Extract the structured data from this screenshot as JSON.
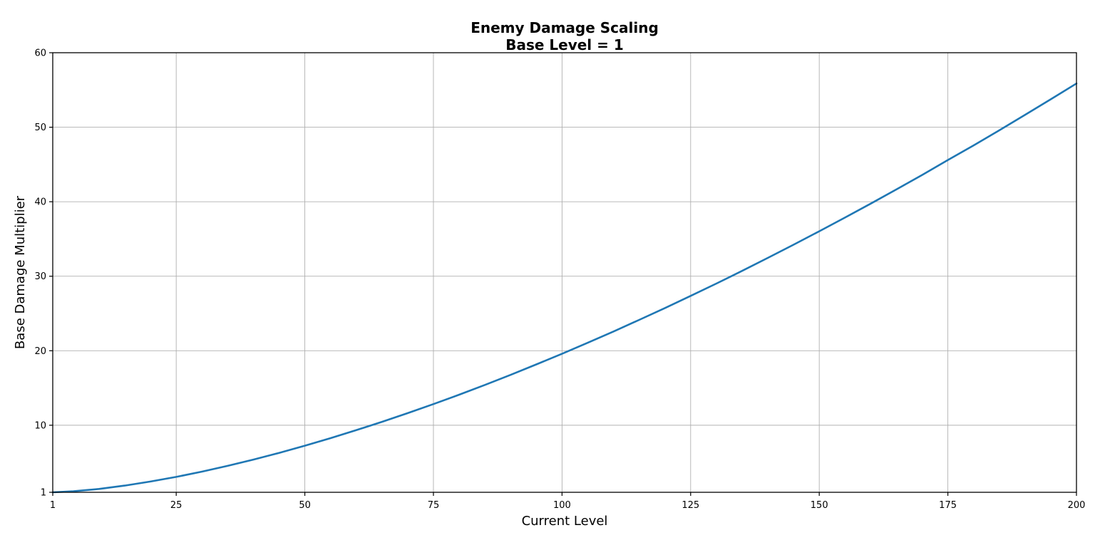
{
  "chart_data": {
    "type": "line",
    "title": "Enemy Damage Scaling\nBase Level = 1",
    "title_lines": [
      "Enemy Damage Scaling",
      "Base Level = 1"
    ],
    "xlabel": "Current Level",
    "ylabel": "Base Damage Multiplier",
    "xlim": [
      1,
      200
    ],
    "ylim": [
      1,
      60
    ],
    "xticks": [
      1,
      25,
      50,
      75,
      100,
      125,
      150,
      175,
      200
    ],
    "yticks": [
      1,
      10,
      20,
      30,
      40,
      50,
      60
    ],
    "grid": true,
    "legend": false,
    "colors": {
      "line": "#1f77b4",
      "grid": "#b0b0b0",
      "axis": "#000000",
      "background": "#ffffff"
    },
    "series": [
      {
        "name": "Base Damage Multiplier",
        "x": [
          1,
          5,
          10,
          15,
          20,
          25,
          30,
          35,
          40,
          45,
          50,
          55,
          60,
          65,
          70,
          75,
          80,
          85,
          90,
          95,
          100,
          105,
          110,
          115,
          120,
          125,
          130,
          135,
          140,
          145,
          150,
          155,
          160,
          165,
          170,
          175,
          180,
          185,
          190,
          195,
          200
        ],
        "y": [
          1.0,
          1.13,
          1.45,
          1.9,
          2.44,
          3.07,
          3.77,
          4.55,
          5.39,
          6.29,
          7.25,
          8.27,
          9.34,
          10.46,
          11.62,
          12.84,
          14.1,
          15.41,
          16.76,
          18.16,
          19.59,
          21.07,
          22.58,
          24.14,
          25.73,
          27.36,
          29.02,
          30.72,
          32.46,
          34.23,
          36.04,
          37.87,
          39.75,
          41.65,
          43.59,
          45.6,
          47.56,
          49.59,
          51.65,
          53.75,
          55.87
        ]
      }
    ]
  }
}
